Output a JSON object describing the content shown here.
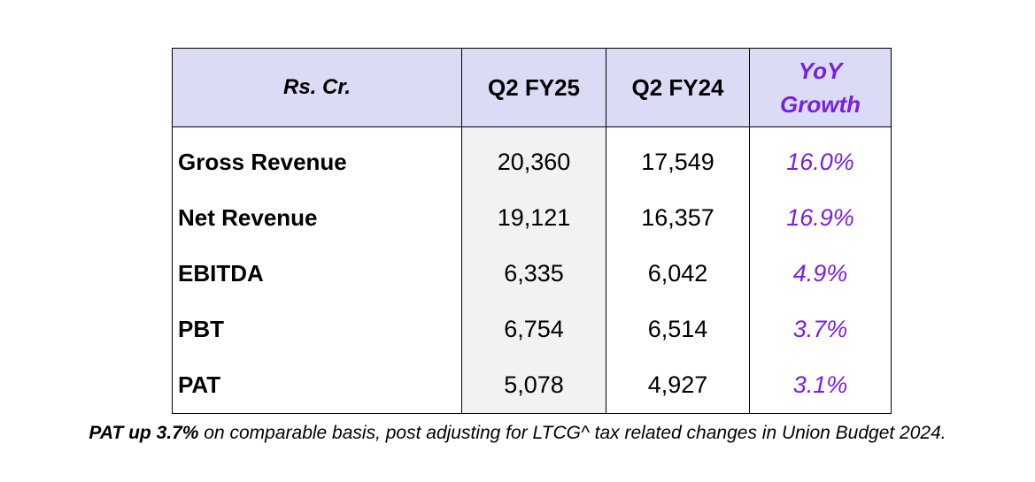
{
  "table": {
    "header": {
      "unit": "Rs. Cr.",
      "current": "Q2 FY25",
      "previous": "Q2 FY24",
      "growth_line1": "YoY",
      "growth_line2": "Growth"
    },
    "rows": [
      {
        "metric": "Gross Revenue",
        "current": "20,360",
        "previous": "17,549",
        "yoy": "16.0%"
      },
      {
        "metric": "Net Revenue",
        "current": "19,121",
        "previous": "16,357",
        "yoy": "16.9%"
      },
      {
        "metric": "EBITDA",
        "current": "6,335",
        "previous": "6,042",
        "yoy": "4.9%"
      },
      {
        "metric": "PBT",
        "current": "6,754",
        "previous": "6,514",
        "yoy": "3.7%"
      },
      {
        "metric": "PAT",
        "current": "5,078",
        "previous": "4,927",
        "yoy": "3.1%"
      }
    ]
  },
  "footnote": {
    "bold": "PAT up 3.7%",
    "rest": " on comparable basis, post adjusting for LTCG^ tax related changes in Union Budget 2024."
  },
  "colors": {
    "header_bg": "#d9dcf4",
    "current_col_bg": "#f2f2f2",
    "growth_text": "#7a1fe0"
  }
}
